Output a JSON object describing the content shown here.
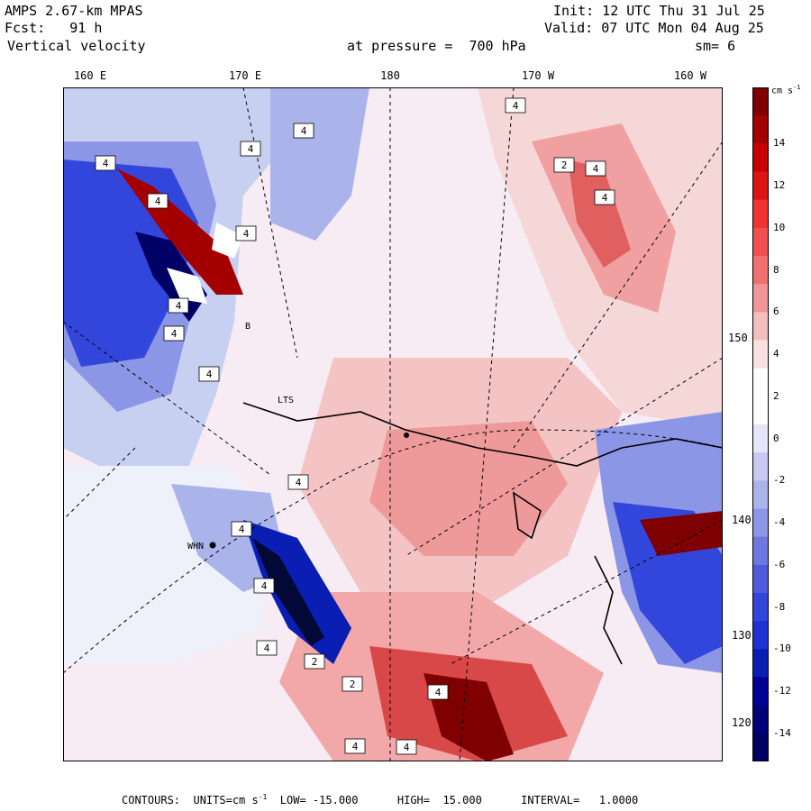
{
  "header": {
    "model": "AMPS 2.67-km MPAS",
    "fcst_label": "Fcst:",
    "fcst_value": "91 h",
    "field": "Vertical velocity",
    "init": "Init: 12 UTC Thu 31 Jul 25",
    "valid": "Valid: 07 UTC Mon 04 Aug 25",
    "pressure": "at pressure =  700 hPa",
    "smoothing": "sm= 6"
  },
  "lon_labels": [
    "160 E",
    "170 E",
    "180",
    "170 W",
    "160 W"
  ],
  "lat_labels": [
    "150 W",
    "140 W",
    "130 W",
    "120 W"
  ],
  "colorbar": {
    "units": "cm s",
    "units_exp": "-1",
    "ticks": [
      "14",
      "12",
      "10",
      "8",
      "6",
      "4",
      "2",
      "0",
      "-2",
      "-4",
      "-6",
      "-8",
      "-10",
      "-12",
      "-14"
    ],
    "colors": [
      "#7f0000",
      "#a50000",
      "#c80000",
      "#dc1414",
      "#f03232",
      "#f05050",
      "#f07070",
      "#f09696",
      "#f5bebe",
      "#fae1e1",
      "#ffffff",
      "#ffffff",
      "#e6e6fa",
      "#c8c8f0",
      "#aab4eb",
      "#8c96e6",
      "#6e78e1",
      "#505adc",
      "#3246dc",
      "#1e32d2",
      "#0a1eb4",
      "#000096",
      "#000078",
      "#000064"
    ]
  },
  "stations": {
    "whn": "WHN",
    "b": "B",
    "lts": "LTS"
  },
  "barbs": [
    "4",
    "4",
    "4",
    "4",
    "4",
    "4",
    "4",
    "4",
    "2",
    "4",
    "4",
    "4",
    "4",
    "4",
    "4",
    "4",
    "2",
    "2",
    "4",
    "4",
    "4"
  ],
  "footer": {
    "contours": "CONTOURS:  UNITS=cm s",
    "exp": "-1",
    "low": "  LOW= -15.000",
    "high": "HIGH=  15.000",
    "interval": "INTERVAL=   1.0000"
  },
  "palette": {
    "background": "#f7ecf3",
    "red_strong": "#c80000",
    "red_light": "#f2b8b8",
    "blue_strong": "#1e32d2",
    "blue_light": "#aab4eb"
  }
}
